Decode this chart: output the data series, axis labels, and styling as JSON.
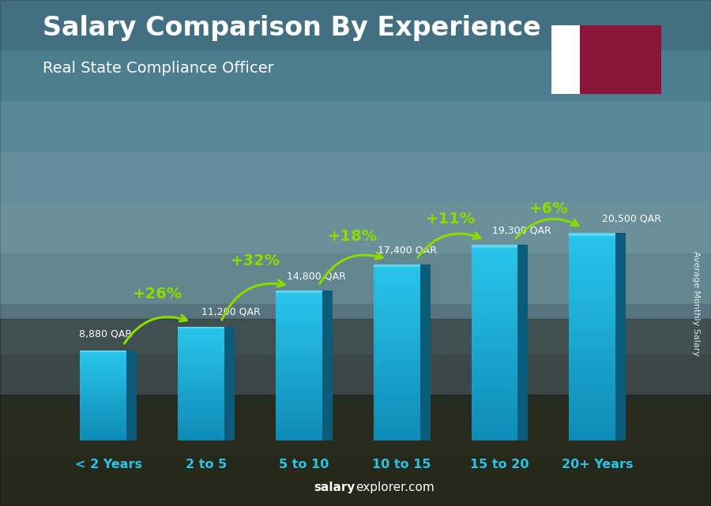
{
  "title": "Salary Comparison By Experience",
  "subtitle": "Real State Compliance Officer",
  "categories": [
    "< 2 Years",
    "2 to 5",
    "5 to 10",
    "10 to 15",
    "15 to 20",
    "20+ Years"
  ],
  "values": [
    8880,
    11200,
    14800,
    17400,
    19300,
    20500
  ],
  "labels": [
    "8,880 QAR",
    "11,200 QAR",
    "14,800 QAR",
    "17,400 QAR",
    "19,300 QAR",
    "20,500 QAR"
  ],
  "pct_changes": [
    "+26%",
    "+32%",
    "+18%",
    "+11%",
    "+6%"
  ],
  "bar_color_top": "#29C4EA",
  "bar_color_mid": "#1AADD4",
  "bar_color_dark": "#0E6E8C",
  "bar_color_side": "#0A4F6A",
  "pct_color": "#88DD00",
  "arrow_color": "#88DD00",
  "label_color": "#FFFFFF",
  "xlabel_color": "#29C4EA",
  "title_color": "#FFFFFF",
  "subtitle_color": "#FFFFFF",
  "bg_sky_top": "#6AADCC",
  "bg_sky_bottom": "#4A7A9B",
  "bg_ground": "#2A3A2A",
  "footer_bold": "salary",
  "footer_regular": "explorer.com",
  "side_label": "Average Monthly Salary",
  "ylim": [
    0,
    26000
  ],
  "bar_width": 0.58
}
